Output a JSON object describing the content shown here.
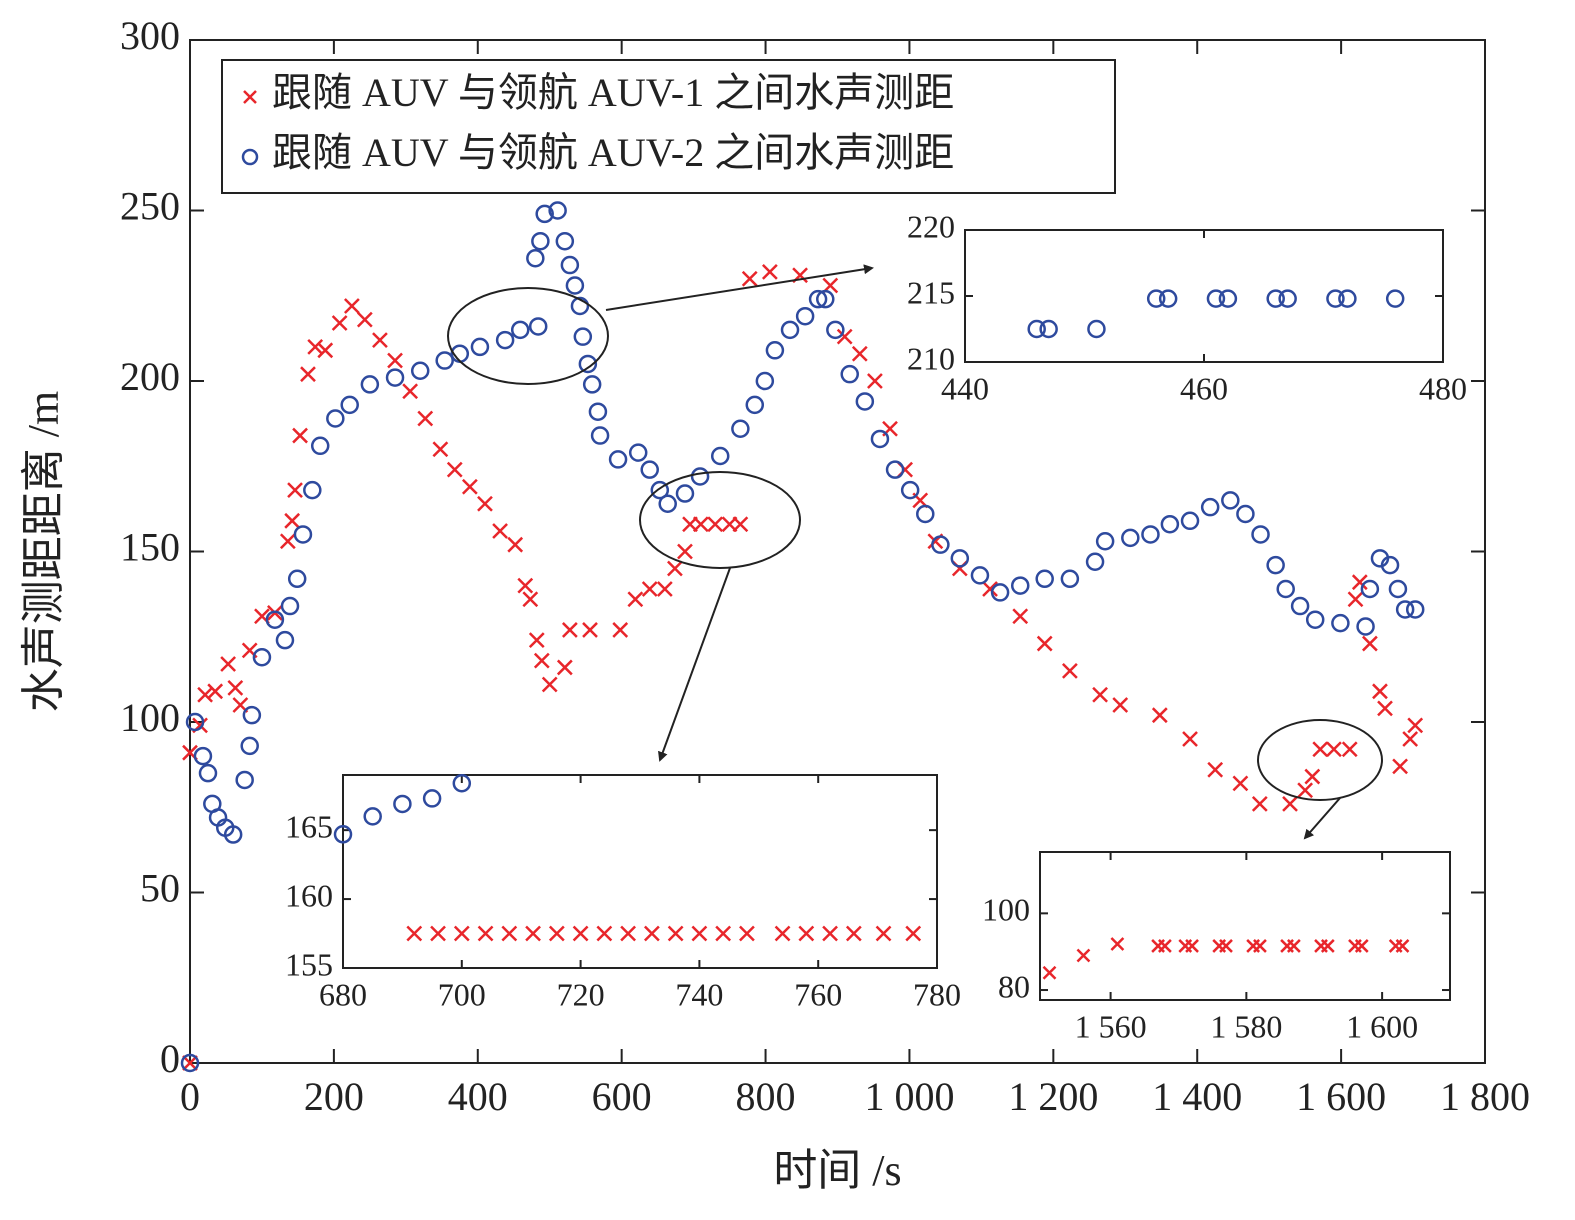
{
  "chart_data": [
    {
      "type": "scatter",
      "xlabel": "时间 /s",
      "ylabel": "水声测距距离 /m",
      "xlim": [
        0,
        1800
      ],
      "ylim": [
        0,
        300
      ],
      "xticks": [
        0,
        200,
        400,
        600,
        800,
        {
          "value": 1000,
          "label": "1 000"
        },
        {
          "value": 1200,
          "label": "1 200"
        },
        {
          "value": 1400,
          "label": "1 400"
        },
        {
          "value": 1600,
          "label": "1 600"
        },
        {
          "value": 1800,
          "label": "1 800"
        }
      ],
      "yticks": [
        0,
        50,
        100,
        150,
        200,
        250,
        300
      ],
      "legend": "upper left",
      "series": [
        {
          "name": "跟随 AUV 与领航 AUV-1 之间水声测距",
          "color": "#e8262b",
          "marker": "x",
          "x": [
            0,
            0,
            14,
            21,
            35,
            53,
            63,
            70,
            83,
            100,
            118,
            136,
            142,
            146,
            153,
            164,
            174,
            188,
            208,
            225,
            243,
            264,
            285,
            306,
            327,
            348,
            368,
            389,
            410,
            431,
            452,
            466,
            473,
            482,
            489,
            500,
            521,
            528,
            556,
            598,
            619,
            639,
            660,
            674,
            688,
            695,
            710,
            730,
            750,
            765,
            778,
            806,
            848,
            890,
            910,
            931,
            952,
            973,
            994,
            1015,
            1036,
            1070,
            1112,
            1154,
            1188,
            1223,
            1265,
            1293,
            1348,
            1390,
            1425,
            1460,
            1487,
            1529,
            1550,
            1560,
            1571,
            1590,
            1612,
            1620,
            1626,
            1640,
            1654,
            1661,
            1682,
            1696,
            1703
          ],
          "values": [
            0,
            91,
            99,
            108,
            109,
            117,
            110,
            105,
            121,
            131,
            132,
            153,
            159,
            168,
            184,
            202,
            210,
            209,
            217,
            222,
            218,
            212,
            206,
            197,
            189,
            180,
            174,
            169,
            164,
            156,
            152,
            140,
            136,
            124,
            118,
            111,
            116,
            127,
            127,
            127,
            136,
            139,
            139,
            145,
            150,
            158,
            158,
            158,
            158,
            158,
            230,
            232,
            231,
            228,
            213,
            208,
            200,
            186,
            174,
            165,
            153,
            145,
            139,
            131,
            123,
            115,
            108,
            105,
            102,
            95,
            86,
            82,
            76,
            76,
            80,
            84,
            92,
            92,
            92,
            136,
            141,
            123,
            109,
            104,
            87,
            95,
            99
          ]
        },
        {
          "name": "跟随 AUV 与领航 AUV-2 之间水声测距",
          "color": "#2e4a9e",
          "marker": "o",
          "x": [
            0,
            7,
            18,
            25,
            31,
            39,
            49,
            60,
            76,
            83,
            86,
            100,
            118,
            132,
            139,
            149,
            157,
            170,
            181,
            202,
            222,
            250,
            285,
            320,
            354,
            375,
            403,
            438,
            459,
            484,
            480,
            487,
            493,
            511,
            521,
            528,
            535,
            542,
            546,
            553,
            559,
            567,
            570,
            595,
            623,
            639,
            653,
            664,
            688,
            709,
            737,
            765,
            785,
            799,
            813,
            834,
            855,
            873,
            883,
            897,
            917,
            938,
            959,
            980,
            1001,
            1022,
            1043,
            1070,
            1098,
            1126,
            1154,
            1188,
            1223,
            1258,
            1272,
            1307,
            1335,
            1362,
            1390,
            1418,
            1446,
            1467,
            1488,
            1509,
            1523,
            1543,
            1564,
            1599,
            1634,
            1640,
            1654,
            1668,
            1679,
            1689,
            1703
          ],
          "values": [
            0,
            100,
            90,
            85,
            76,
            72,
            69,
            67,
            83,
            93,
            102,
            119,
            130,
            124,
            134,
            142,
            155,
            168,
            181,
            189,
            193,
            199,
            201,
            203,
            206,
            208,
            210,
            212,
            215,
            216,
            236,
            241,
            249,
            250,
            241,
            234,
            228,
            222,
            213,
            205,
            199,
            191,
            184,
            177,
            179,
            174,
            168,
            164,
            167,
            172,
            178,
            186,
            193,
            200,
            209,
            215,
            219,
            224,
            224,
            215,
            202,
            194,
            183,
            174,
            168,
            161,
            152,
            148,
            143,
            138,
            140,
            142,
            142,
            147,
            153,
            154,
            155,
            158,
            159,
            163,
            165,
            161,
            155,
            146,
            139,
            134,
            130,
            129,
            128,
            139,
            148,
            146,
            139,
            133,
            133
          ]
        }
      ]
    },
    {
      "type": "scatter",
      "xlim": [
        440,
        480
      ],
      "ylim": [
        210,
        220
      ],
      "xticks": [
        440,
        460,
        480
      ],
      "yticks": [
        210,
        215,
        220
      ],
      "series": [
        {
          "color": "#2e4a9e",
          "marker": "o",
          "x": [
            446,
            447,
            451,
            456,
            457,
            461,
            462,
            466,
            467,
            471,
            472,
            476
          ],
          "values": [
            212.5,
            212.5,
            212.5,
            214.8,
            214.8,
            214.8,
            214.8,
            214.8,
            214.8,
            214.8,
            214.8,
            214.8
          ]
        }
      ]
    },
    {
      "type": "scatter",
      "xlim": [
        680,
        780
      ],
      "ylim": [
        155,
        169
      ],
      "xticks": [
        680,
        700,
        720,
        740,
        760,
        780
      ],
      "yticks": [
        155,
        160,
        165
      ],
      "series": [
        {
          "color": "#2e4a9e",
          "marker": "o",
          "x": [
            680,
            685,
            690,
            695,
            700
          ],
          "values": [
            164.7,
            166,
            166.9,
            167.3,
            168.4
          ]
        },
        {
          "color": "#e8262b",
          "marker": "x",
          "x": [
            692,
            696,
            700,
            704,
            708,
            712,
            716,
            720,
            724,
            728,
            732,
            736,
            740,
            744,
            748,
            754,
            758,
            762,
            766,
            771,
            776
          ],
          "values": [
            157.5,
            157.5,
            157.5,
            157.5,
            157.5,
            157.5,
            157.5,
            157.5,
            157.5,
            157.5,
            157.5,
            157.5,
            157.5,
            157.5,
            157.5,
            157.5,
            157.5,
            157.5,
            157.5,
            157.5,
            157.5
          ]
        }
      ]
    },
    {
      "type": "scatter",
      "xlim": [
        1549.6,
        1610
      ],
      "ylim": [
        77.4,
        116
      ],
      "xticks": [
        {
          "value": 1560,
          "label": "1 560"
        },
        {
          "value": 1580,
          "label": "1 580"
        },
        {
          "value": 1600,
          "label": "1 600"
        }
      ],
      "yticks": [
        80,
        100
      ],
      "series": [
        {
          "color": "#e8262b",
          "marker": "x",
          "x": [
            1551,
            1556,
            1561,
            1567,
            1568,
            1571,
            1572,
            1576,
            1577,
            1581,
            1582,
            1586,
            1587,
            1591,
            1592,
            1596,
            1597,
            1602,
            1603
          ],
          "values": [
            84.5,
            89,
            92,
            91.5,
            91.5,
            91.5,
            91.5,
            91.5,
            91.5,
            91.5,
            91.5,
            91.5,
            91.5,
            91.5,
            91.5,
            91.5,
            91.5,
            91.5,
            91.5
          ]
        }
      ]
    }
  ]
}
